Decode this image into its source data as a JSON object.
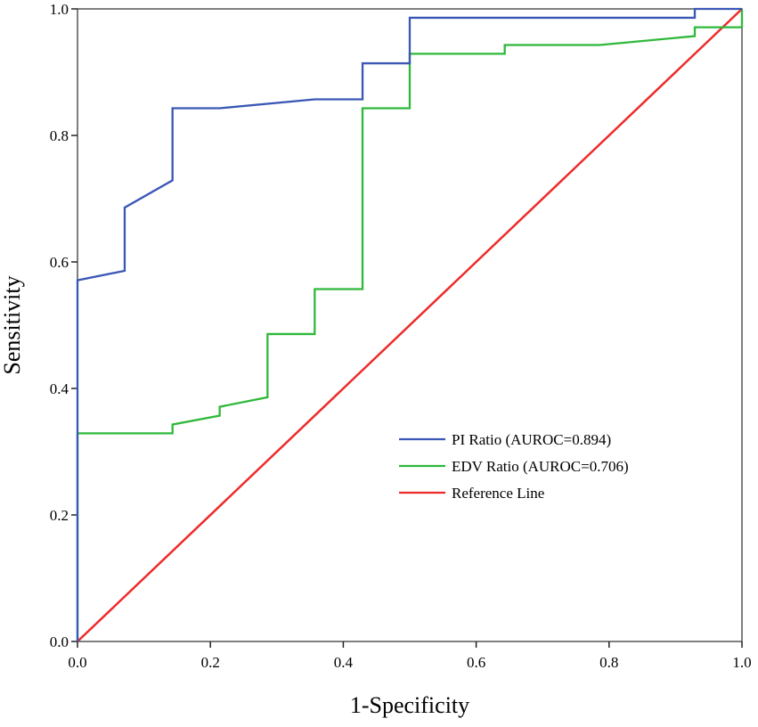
{
  "chart_data": {
    "type": "line",
    "title": "",
    "xlabel": "1-Specificity",
    "ylabel": "Sensitivity",
    "xlim": [
      0,
      1
    ],
    "ylim": [
      0,
      1
    ],
    "xticks": [
      "0.0",
      "0.2",
      "0.4",
      "0.6",
      "0.8",
      "1.0"
    ],
    "yticks": [
      "0.0",
      "0.2",
      "0.4",
      "0.6",
      "0.8",
      "1.0"
    ],
    "grid": false,
    "legend_position": "center-right",
    "series": [
      {
        "name": "PI Ratio (AUROC=0.894)",
        "color": "#3a57b5",
        "points": [
          [
            0,
            0
          ],
          [
            0,
            0.571
          ],
          [
            0.071,
            0.586
          ],
          [
            0.071,
            0.686
          ],
          [
            0.143,
            0.729
          ],
          [
            0.143,
            0.843
          ],
          [
            0.214,
            0.843
          ],
          [
            0.357,
            0.857
          ],
          [
            0.429,
            0.857
          ],
          [
            0.429,
            0.914
          ],
          [
            0.5,
            0.914
          ],
          [
            0.5,
            0.986
          ],
          [
            0.929,
            0.986
          ],
          [
            0.929,
            1.0
          ],
          [
            1,
            1
          ]
        ]
      },
      {
        "name": "EDV Ratio (AUROC=0.706)",
        "color": "#2fb83a",
        "points": [
          [
            0,
            0
          ],
          [
            0,
            0.329
          ],
          [
            0.143,
            0.329
          ],
          [
            0.143,
            0.343
          ],
          [
            0.214,
            0.357
          ],
          [
            0.214,
            0.371
          ],
          [
            0.286,
            0.386
          ],
          [
            0.286,
            0.486
          ],
          [
            0.357,
            0.486
          ],
          [
            0.357,
            0.557
          ],
          [
            0.429,
            0.557
          ],
          [
            0.429,
            0.843
          ],
          [
            0.5,
            0.843
          ],
          [
            0.5,
            0.929
          ],
          [
            0.643,
            0.929
          ],
          [
            0.643,
            0.943
          ],
          [
            0.786,
            0.943
          ],
          [
            0.929,
            0.957
          ],
          [
            0.929,
            0.971
          ],
          [
            1,
            0.971
          ],
          [
            1,
            1
          ]
        ]
      },
      {
        "name": "Reference Line",
        "color": "#ee2a2a",
        "points": [
          [
            0,
            0
          ],
          [
            1,
            1
          ]
        ]
      }
    ]
  }
}
